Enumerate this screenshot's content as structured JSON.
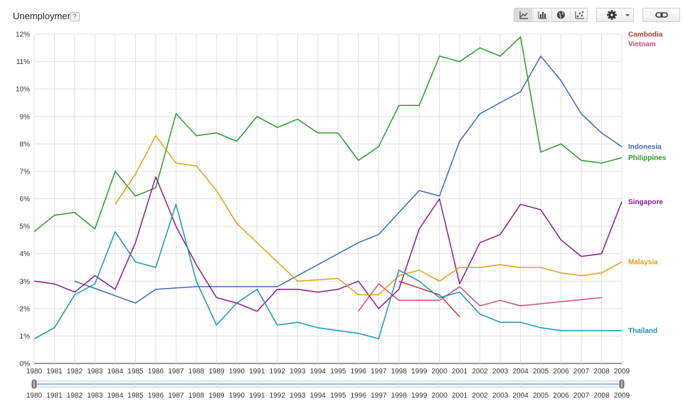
{
  "header": {
    "title": "Unemployment",
    "help_label": "?"
  },
  "toolbar": {
    "views": [
      "line-chart-icon",
      "bar-chart-icon",
      "globe-icon",
      "scatter-icon"
    ],
    "active_view": "line-chart-icon",
    "settings_icon": "gear-icon",
    "link_icon": "link-icon"
  },
  "chart_data": {
    "type": "line",
    "xlim": [
      1980,
      2009
    ],
    "ylim": [
      0,
      12
    ],
    "x_ticks": [
      "1980",
      "1981",
      "1982",
      "1983",
      "1984",
      "1985",
      "1986",
      "1987",
      "1988",
      "1989",
      "1990",
      "1991",
      "1992",
      "1993",
      "1994",
      "1995",
      "1996",
      "1997",
      "1998",
      "1999",
      "2000",
      "2001",
      "2002",
      "2003",
      "2004",
      "2005",
      "2006",
      "2007",
      "2008",
      "2009"
    ],
    "y_ticks": [
      "0%",
      "1%",
      "2%",
      "3%",
      "4%",
      "5%",
      "6%",
      "7%",
      "8%",
      "9%",
      "10%",
      "11%",
      "12%"
    ],
    "grid": true,
    "legend_placement": "right",
    "series": [
      {
        "name": "Cambodia",
        "color": "#c0392b",
        "points": [
          [
            1998,
            3.0
          ],
          [
            2000,
            2.5
          ],
          [
            2001,
            1.7
          ]
        ]
      },
      {
        "name": "Vietnam",
        "color": "#cc4c7c",
        "points": [
          [
            1996,
            1.9
          ],
          [
            1997,
            2.9
          ],
          [
            1998,
            2.3
          ],
          [
            1999,
            2.3
          ],
          [
            2000,
            2.3
          ],
          [
            2001,
            2.8
          ],
          [
            2002,
            2.1
          ],
          [
            2003,
            2.3
          ],
          [
            2004,
            2.1
          ],
          [
            2008,
            2.4
          ]
        ]
      },
      {
        "name": "Indonesia",
        "color": "#3d6bb3",
        "points": [
          [
            1982,
            3.0
          ],
          [
            1985,
            2.2
          ],
          [
            1986,
            2.7
          ],
          [
            1988,
            2.8
          ],
          [
            1992,
            2.8
          ],
          [
            1996,
            4.4
          ],
          [
            1997,
            4.7
          ],
          [
            1999,
            6.3
          ],
          [
            2000,
            6.1
          ],
          [
            2001,
            8.1
          ],
          [
            2002,
            9.1
          ],
          [
            2004,
            9.9
          ],
          [
            2005,
            11.2
          ],
          [
            2006,
            10.3
          ],
          [
            2007,
            9.1
          ],
          [
            2008,
            8.4
          ],
          [
            2009,
            7.9
          ]
        ]
      },
      {
        "name": "Philippines",
        "color": "#2a9a2a",
        "points": [
          [
            1980,
            4.8
          ],
          [
            1981,
            5.4
          ],
          [
            1982,
            5.5
          ],
          [
            1983,
            4.9
          ],
          [
            1984,
            7.0
          ],
          [
            1985,
            6.1
          ],
          [
            1986,
            6.4
          ],
          [
            1987,
            9.1
          ],
          [
            1988,
            8.3
          ],
          [
            1989,
            8.4
          ],
          [
            1990,
            8.1
          ],
          [
            1991,
            9.0
          ],
          [
            1992,
            8.6
          ],
          [
            1993,
            8.9
          ],
          [
            1994,
            8.4
          ],
          [
            1995,
            8.4
          ],
          [
            1996,
            7.4
          ],
          [
            1997,
            7.9
          ],
          [
            1998,
            9.4
          ],
          [
            1999,
            9.4
          ],
          [
            2000,
            11.2
          ],
          [
            2001,
            11.0
          ],
          [
            2002,
            11.5
          ],
          [
            2003,
            11.2
          ],
          [
            2004,
            11.9
          ],
          [
            2005,
            7.7
          ],
          [
            2006,
            8.0
          ],
          [
            2007,
            7.4
          ],
          [
            2008,
            7.3
          ],
          [
            2009,
            7.5
          ]
        ]
      },
      {
        "name": "Singapore",
        "color": "#8b1a8b",
        "points": [
          [
            1980,
            3.0
          ],
          [
            1981,
            2.9
          ],
          [
            1982,
            2.6
          ],
          [
            1983,
            3.2
          ],
          [
            1984,
            2.7
          ],
          [
            1985,
            4.4
          ],
          [
            1986,
            6.8
          ],
          [
            1987,
            5.0
          ],
          [
            1988,
            3.6
          ],
          [
            1989,
            2.4
          ],
          [
            1990,
            2.2
          ],
          [
            1991,
            1.9
          ],
          [
            1992,
            2.7
          ],
          [
            1993,
            2.7
          ],
          [
            1994,
            2.6
          ],
          [
            1995,
            2.7
          ],
          [
            1996,
            3.0
          ],
          [
            1997,
            2.0
          ],
          [
            1998,
            2.7
          ],
          [
            1999,
            4.9
          ],
          [
            2000,
            6.0
          ],
          [
            2001,
            2.9
          ],
          [
            2002,
            4.4
          ],
          [
            2003,
            4.7
          ],
          [
            2004,
            5.8
          ],
          [
            2005,
            5.6
          ],
          [
            2006,
            4.5
          ],
          [
            2007,
            3.9
          ],
          [
            2008,
            4.0
          ],
          [
            2009,
            5.9
          ]
        ]
      },
      {
        "name": "Malaysia",
        "color": "#e59e12",
        "points": [
          [
            1984,
            5.8
          ],
          [
            1985,
            6.9
          ],
          [
            1986,
            8.3
          ],
          [
            1987,
            7.3
          ],
          [
            1988,
            7.2
          ],
          [
            1989,
            6.3
          ],
          [
            1990,
            5.1
          ],
          [
            1993,
            3.0
          ],
          [
            1995,
            3.1
          ],
          [
            1996,
            2.5
          ],
          [
            1997,
            2.5
          ],
          [
            1998,
            3.2
          ],
          [
            1999,
            3.4
          ],
          [
            2000,
            3.0
          ],
          [
            2001,
            3.5
          ],
          [
            2002,
            3.5
          ],
          [
            2003,
            3.6
          ],
          [
            2004,
            3.5
          ],
          [
            2005,
            3.5
          ],
          [
            2006,
            3.3
          ],
          [
            2007,
            3.2
          ],
          [
            2008,
            3.3
          ],
          [
            2009,
            3.7
          ]
        ]
      },
      {
        "name": "Thailand",
        "color": "#1896b8",
        "points": [
          [
            1980,
            0.9
          ],
          [
            1981,
            1.3
          ],
          [
            1982,
            2.5
          ],
          [
            1983,
            2.9
          ],
          [
            1984,
            4.8
          ],
          [
            1985,
            3.7
          ],
          [
            1986,
            3.5
          ],
          [
            1987,
            5.8
          ],
          [
            1988,
            3.0
          ],
          [
            1989,
            1.4
          ],
          [
            1990,
            2.2
          ],
          [
            1991,
            2.7
          ],
          [
            1992,
            1.4
          ],
          [
            1993,
            1.5
          ],
          [
            1994,
            1.3
          ],
          [
            1995,
            1.2
          ],
          [
            1996,
            1.1
          ],
          [
            1997,
            0.9
          ],
          [
            1998,
            3.4
          ],
          [
            1999,
            3.0
          ],
          [
            2000,
            2.4
          ],
          [
            2001,
            2.6
          ],
          [
            2002,
            1.8
          ],
          [
            2003,
            1.5
          ],
          [
            2004,
            1.5
          ],
          [
            2005,
            1.3
          ],
          [
            2006,
            1.2
          ],
          [
            2009,
            1.2
          ]
        ]
      }
    ],
    "legend": [
      {
        "name": "Cambodia",
        "value_anchor": 12.0
      },
      {
        "name": "Vietnam",
        "value_anchor": 11.65
      },
      {
        "name": "Indonesia",
        "value_anchor": 7.9
      },
      {
        "name": "Philippines",
        "value_anchor": 7.5
      },
      {
        "name": "Singapore",
        "value_anchor": 5.9
      },
      {
        "name": "Malaysia",
        "value_anchor": 3.7
      },
      {
        "name": "Thailand",
        "value_anchor": 1.2
      }
    ],
    "range_selector": {
      "start": 1980,
      "end": 2009
    }
  }
}
